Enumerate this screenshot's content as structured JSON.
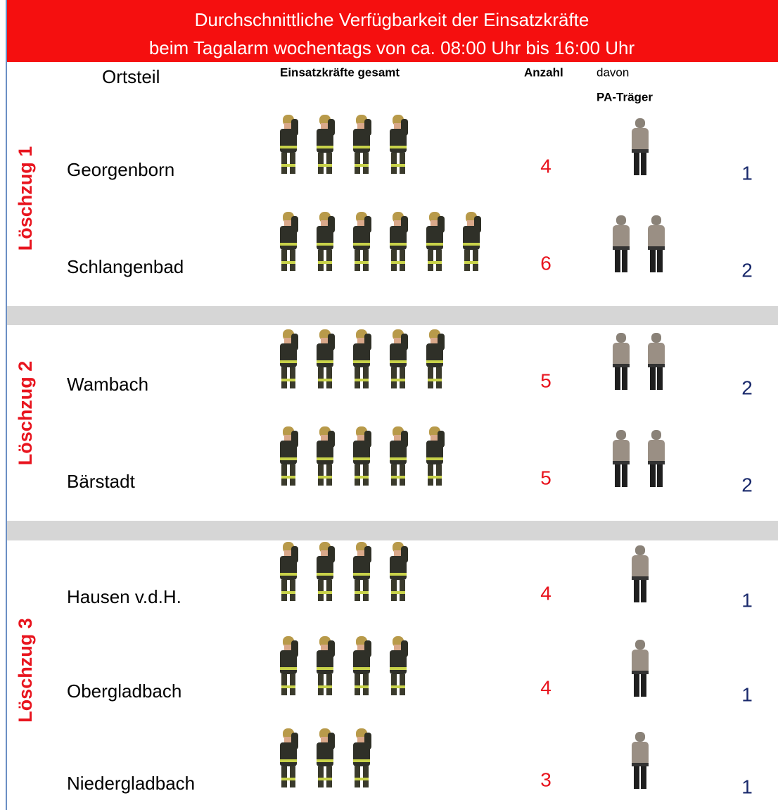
{
  "title_lines": [
    "Durchschnittliche Verfügbarkeit der Einsatzkräfte",
    "beim Tagalarm wochentags von ca. 08:00 Uhr bis 16:00 Uhr"
  ],
  "columns": {
    "ortsteil": "Ortsteil",
    "gesamt": "Einsatzkräfte gesamt",
    "anzahl": "Anzahl",
    "davon": "davon",
    "pa": "PA-Träger"
  },
  "groups": [
    {
      "label": "Löschzug 1",
      "rows": [
        {
          "name": "Georgenborn",
          "count": 4,
          "pa": 1
        },
        {
          "name": "Schlangenbad",
          "count": 6,
          "pa": 2
        }
      ]
    },
    {
      "label": "Löschzug 2",
      "rows": [
        {
          "name": "Wambach",
          "count": 5,
          "pa": 2
        },
        {
          "name": "Bärstadt",
          "count": 5,
          "pa": 2
        }
      ]
    },
    {
      "label": "Löschzug 3",
      "rows": [
        {
          "name": "Hausen v.d.H.",
          "count": 4,
          "pa": 1
        },
        {
          "name": "Obergladbach",
          "count": 4,
          "pa": 1
        },
        {
          "name": "Niedergladbach",
          "count": 3,
          "pa": 1
        }
      ]
    }
  ]
}
